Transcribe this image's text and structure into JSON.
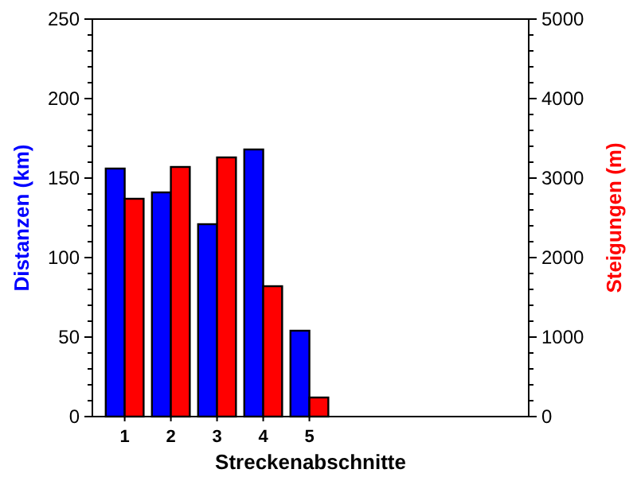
{
  "chart_data": {
    "type": "bar",
    "xlabel": "Streckenabschnitte",
    "ylabel": "Distanzen (km)",
    "y2label": "Steigungen (m)",
    "x": [
      1,
      2,
      3,
      4,
      5
    ],
    "xlim": [
      0.3,
      9.75
    ],
    "xticks": [
      1,
      2,
      3,
      4,
      5
    ],
    "ylim": [
      0,
      250
    ],
    "yticks": [
      0,
      {
        "value": 10,
        "label": null
      },
      {
        "value": 20,
        "label": null
      },
      {
        "value": 30,
        "label": null
      },
      {
        "value": 40,
        "label": null
      },
      50,
      {
        "value": 60,
        "label": null
      },
      {
        "value": 70,
        "label": null
      },
      {
        "value": 80,
        "label": null
      },
      {
        "value": 90,
        "label": null
      },
      100,
      {
        "value": 110,
        "label": null
      },
      {
        "value": 120,
        "label": null
      },
      {
        "value": 130,
        "label": null
      },
      {
        "value": 140,
        "label": null
      },
      150,
      {
        "value": 160,
        "label": null
      },
      {
        "value": 170,
        "label": null
      },
      {
        "value": 180,
        "label": null
      },
      {
        "value": 190,
        "label": null
      },
      200,
      {
        "value": 210,
        "label": null
      },
      {
        "value": 220,
        "label": null
      },
      {
        "value": 230,
        "label": null
      },
      {
        "value": 240,
        "label": null
      },
      250
    ],
    "y2lim": [
      0,
      5000
    ],
    "y2ticks": [
      0,
      {
        "value": 200,
        "label": null
      },
      {
        "value": 400,
        "label": null
      },
      {
        "value": 600,
        "label": null
      },
      {
        "value": 800,
        "label": null
      },
      1000,
      {
        "value": 1200,
        "label": null
      },
      {
        "value": 1400,
        "label": null
      },
      {
        "value": 1600,
        "label": null
      },
      {
        "value": 1800,
        "label": null
      },
      2000,
      {
        "value": 2200,
        "label": null
      },
      {
        "value": 2400,
        "label": null
      },
      {
        "value": 2600,
        "label": null
      },
      {
        "value": 2800,
        "label": null
      },
      3000,
      {
        "value": 3200,
        "label": null
      },
      {
        "value": 3400,
        "label": null
      },
      {
        "value": 3600,
        "label": null
      },
      {
        "value": 3800,
        "label": null
      },
      4000,
      {
        "value": 4200,
        "label": null
      },
      {
        "value": 4400,
        "label": null
      },
      {
        "value": 4600,
        "label": null
      },
      {
        "value": 4800,
        "label": null
      },
      5000
    ],
    "series": [
      {
        "color": "#0000ff",
        "values": [
          156,
          141,
          121,
          168,
          54
        ]
      },
      {
        "color": "#ff0000",
        "axis": "y2",
        "values": [
          2740,
          3140,
          3260,
          1640,
          240
        ]
      }
    ]
  }
}
